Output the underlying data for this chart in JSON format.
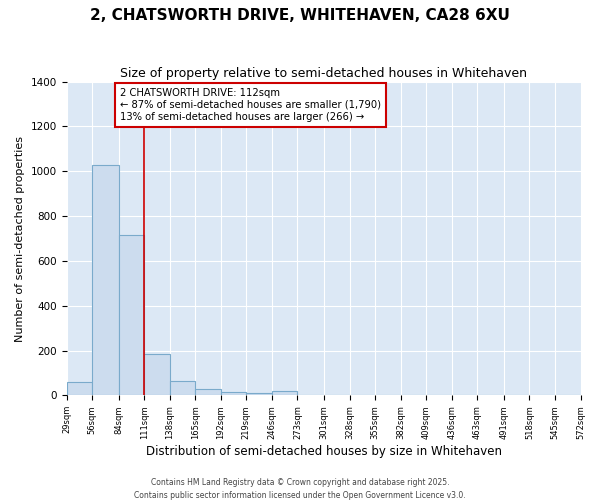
{
  "title": "2, CHATSWORTH DRIVE, WHITEHAVEN, CA28 6XU",
  "subtitle": "Size of property relative to semi-detached houses in Whitehaven",
  "xlabel": "Distribution of semi-detached houses by size in Whitehaven",
  "ylabel": "Number of semi-detached properties",
  "bins": [
    29,
    56,
    84,
    111,
    138,
    165,
    192,
    219,
    246,
    273,
    301,
    328,
    355,
    382,
    409,
    436,
    463,
    491,
    518,
    545,
    572
  ],
  "counts": [
    60,
    1030,
    715,
    185,
    65,
    30,
    15,
    10,
    20,
    0,
    0,
    0,
    0,
    0,
    0,
    0,
    0,
    0,
    0,
    0
  ],
  "bar_color": "#ccdcee",
  "bar_edge_color": "#7aaacb",
  "bar_linewidth": 0.8,
  "red_line_x": 111,
  "annotation_line1": "2 CHATSWORTH DRIVE: 112sqm",
  "annotation_line2": "← 87% of semi-detached houses are smaller (1,790)",
  "annotation_line3": "13% of semi-detached houses are larger (266) →",
  "annotation_box_color": "#ffffff",
  "annotation_box_edge_color": "#cc0000",
  "ylim": [
    0,
    1400
  ],
  "fig_background_color": "#ffffff",
  "plot_background_color": "#dce8f5",
  "grid_color": "#ffffff",
  "footer_line1": "Contains HM Land Registry data © Crown copyright and database right 2025.",
  "footer_line2": "Contains public sector information licensed under the Open Government Licence v3.0.",
  "title_fontsize": 11,
  "subtitle_fontsize": 9
}
